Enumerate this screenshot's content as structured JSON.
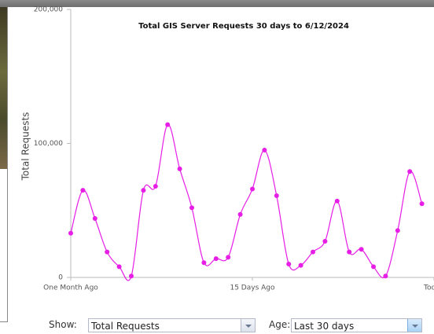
{
  "chart_data": {
    "type": "line",
    "title": "Total GIS Server Requests 30 days to 6/12/2024",
    "y_label": "Total Requests",
    "x": [
      0,
      1,
      2,
      3,
      4,
      5,
      6,
      7,
      8,
      9,
      10,
      11,
      12,
      13,
      14,
      15,
      16,
      17,
      18,
      19,
      20,
      21,
      22,
      23,
      24,
      25,
      26,
      27,
      28,
      29
    ],
    "values": [
      33000,
      65000,
      44000,
      19000,
      8000,
      1000,
      65000,
      68000,
      114000,
      81000,
      52000,
      11000,
      14000,
      15000,
      47000,
      66000,
      95000,
      61000,
      10000,
      9000,
      19000,
      27000,
      57000,
      19000,
      21000,
      8000,
      1000,
      35000,
      79000,
      55000
    ],
    "color": "#e61ee6",
    "xlim": [
      0,
      30
    ],
    "xticks": [
      {
        "value": 0,
        "label": "One Month Ago"
      },
      {
        "value": 15,
        "label": "15 Days Ago"
      },
      {
        "value": 30,
        "label": "Today"
      }
    ],
    "ylim": [
      0,
      200000
    ],
    "yticks": [
      0,
      {
        "value": 100000,
        "label": "100,000"
      },
      {
        "value": 200000,
        "label": "200,000"
      }
    ],
    "grid": false
  },
  "controls": {
    "show_label": "Show:",
    "show_value": "Total Requests",
    "age_label": "Age:",
    "age_value": "Last 30 days"
  }
}
